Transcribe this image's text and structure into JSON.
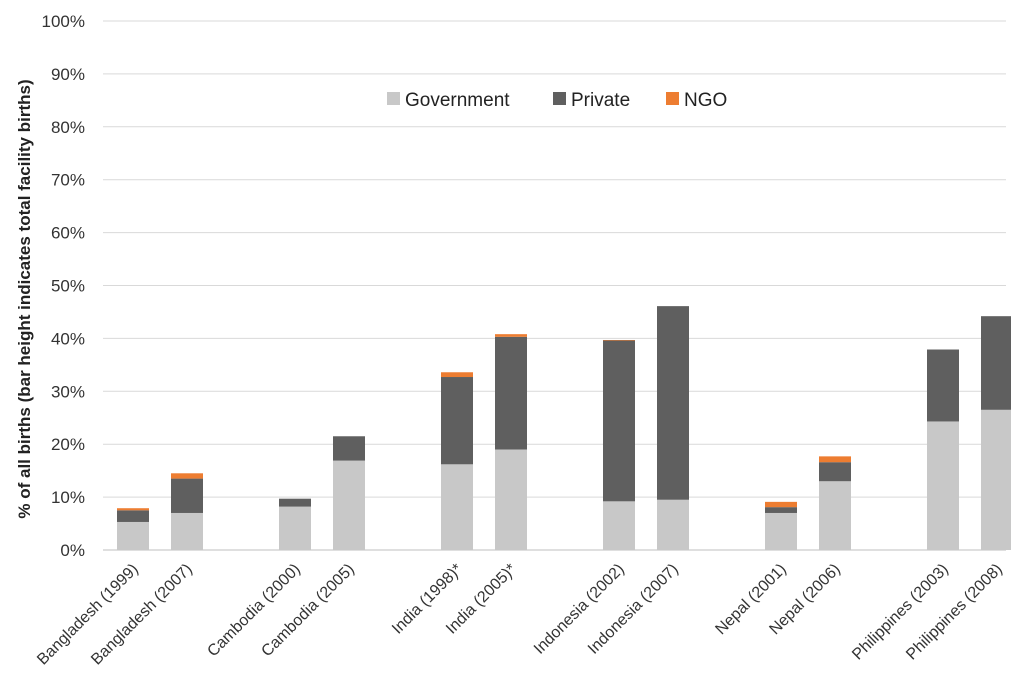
{
  "chart_data": {
    "type": "bar",
    "stacked": true,
    "categories": [
      "Bangladesh (1999)",
      "Bangladesh (2007)",
      "Cambodia (2000)",
      "Cambodia (2005)",
      "India (1998)*",
      "India (2005)*",
      "Indonesia (2002)",
      "Indonesia (2007)",
      "Nepal (2001)",
      "Nepal (2006)",
      "Philippines (2003)",
      "Philippines (2008)"
    ],
    "series": [
      {
        "name": "Government",
        "color": "#c8c8c8",
        "values": [
          5.3,
          7.0,
          8.2,
          16.9,
          16.2,
          19.0,
          9.2,
          9.5,
          7.0,
          13.0,
          24.3,
          26.5
        ]
      },
      {
        "name": "Private",
        "color": "#5f5f5f",
        "values": [
          2.2,
          6.5,
          1.5,
          4.6,
          16.5,
          21.3,
          30.4,
          36.6,
          1.1,
          3.6,
          13.6,
          17.7
        ]
      },
      {
        "name": "NGO",
        "color": "#ed7d31",
        "values": [
          0.4,
          1.0,
          0.0,
          0.0,
          0.9,
          0.5,
          0.1,
          0.0,
          1.0,
          1.1,
          0.0,
          0.0
        ]
      }
    ],
    "ylabel": "% of all births (bar height indicates total facility births)",
    "ylim": [
      0,
      100
    ],
    "yticks": [
      "0%",
      "10%",
      "20%",
      "30%",
      "40%",
      "50%",
      "60%",
      "70%",
      "80%",
      "90%",
      "100%"
    ],
    "grid": true,
    "legend": "top-center"
  }
}
